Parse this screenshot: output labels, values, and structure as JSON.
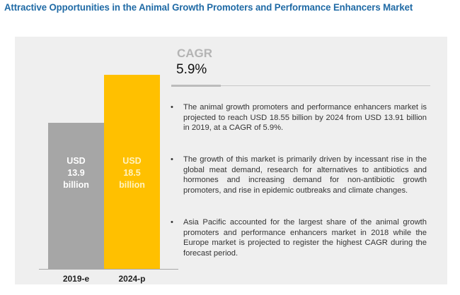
{
  "title": "Attractive Opportunities in the Animal Growth Promoters and Performance Enhancers Market",
  "cagr": {
    "label": "CAGR",
    "value": "5.9%"
  },
  "colors": {
    "title": "#1f6aa5",
    "bar_2019": "#a6a6a6",
    "bar_2024": "#ffc000",
    "panel": "#efefef"
  },
  "chart_data": {
    "type": "bar",
    "title": "",
    "xlabel": "",
    "ylabel": "",
    "unit": "USD billion",
    "categories": [
      "2019-e",
      "2024-p"
    ],
    "values": [
      13.9,
      18.5
    ],
    "ylim": [
      0,
      18.5
    ],
    "grid": false,
    "legend": "none",
    "data_labels": [
      [
        "USD",
        "13.9",
        "billion"
      ],
      [
        "USD",
        "18.5",
        "billion"
      ]
    ]
  },
  "bullets": [
    {
      "marker": "•",
      "text": "The animal growth promoters and performance enhancers market is projected to reach USD 18.55 billion by 2024 from USD 13.91 billion in 2019, at a CAGR of 5.9%."
    },
    {
      "marker": "•",
      "text": "The growth of this market is primarily driven by incessant rise in the global meat demand, research for alternatives to antibiotics and hormones and increasing demand for non-antibiotic growth promoters, and rise in epidemic outbreaks and climate changes."
    },
    {
      "marker": "•",
      "text": "Asia Pacific accounted for the largest share of the animal growth promoters and performance enhancers market in 2018 while the Europe market is projected to register the highest CAGR during the forecast period."
    }
  ]
}
